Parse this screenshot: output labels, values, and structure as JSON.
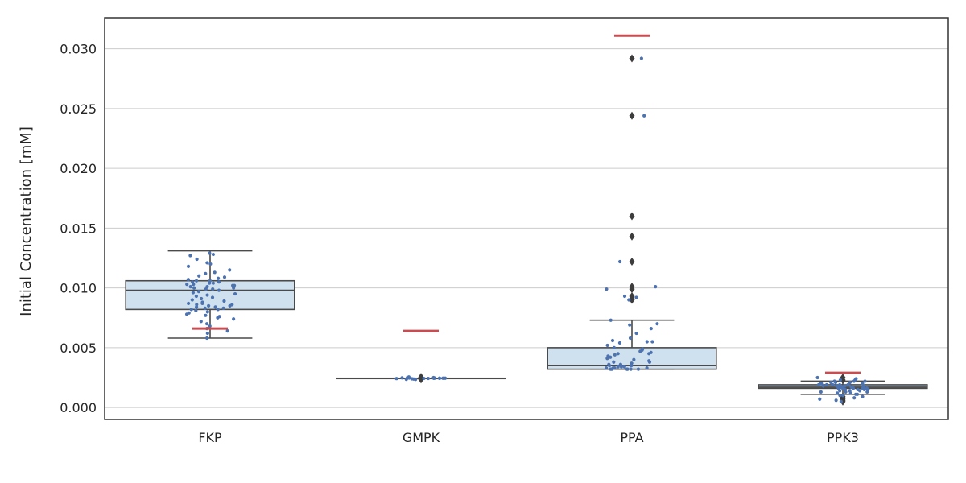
{
  "chart_data": {
    "type": "box",
    "title": "",
    "xlabel": "",
    "ylabel": "Initial Concentration [mM]",
    "ylim": [
      -0.001,
      0.0326
    ],
    "yticks": [
      0.0,
      0.005,
      0.01,
      0.015,
      0.02,
      0.025,
      0.03
    ],
    "ytick_labels": [
      "0.000",
      "0.005",
      "0.010",
      "0.015",
      "0.020",
      "0.025",
      "0.030"
    ],
    "grid": "horizontal",
    "categories": [
      "FKP",
      "GMPK",
      "PPA",
      "PPK3"
    ],
    "colors": {
      "box_fill": "#cfe0ef",
      "box_edge": "#4a4a4a",
      "points": "#4c72b0",
      "reference": "#c44e52",
      "grid": "#cccccc",
      "frame": "#333333"
    },
    "boxes": [
      {
        "category": "FKP",
        "whisker_low": 0.0058,
        "q1": 0.0082,
        "median": 0.0098,
        "q3": 0.0106,
        "whisker_high": 0.0131,
        "outliers": [],
        "reference": 0.0066
      },
      {
        "category": "GMPK",
        "whisker_low": 0.00245,
        "q1": 0.00245,
        "median": 0.00245,
        "q3": 0.00245,
        "whisker_high": 0.00245,
        "outliers": [
          0.00255,
          0.0025,
          0.0024,
          0.00235
        ],
        "reference": 0.0064
      },
      {
        "category": "PPA",
        "whisker_low": 0.0032,
        "q1": 0.0032,
        "median": 0.0035,
        "q3": 0.005,
        "whisker_high": 0.0073,
        "outliers": [
          0.0292,
          0.0244,
          0.016,
          0.0143,
          0.0122,
          0.0101,
          0.0099,
          0.0093,
          0.009
        ],
        "reference": 0.0311
      },
      {
        "category": "PPK3",
        "whisker_low": 0.0011,
        "q1": 0.0016,
        "median": 0.0017,
        "q3": 0.0019,
        "whisker_high": 0.0022,
        "outliers": [
          0.0025,
          0.0023,
          0.0009,
          0.0008,
          0.0007,
          0.0006,
          0.0005
        ],
        "reference": 0.0029
      }
    ],
    "points": [
      {
        "category": "FKP",
        "values": [
          0.0129,
          0.0128,
          0.0127,
          0.0124,
          0.0121,
          0.012,
          0.0118,
          0.0115,
          0.0113,
          0.0112,
          0.011,
          0.0109,
          0.0108,
          0.0107,
          0.0106,
          0.0106,
          0.0105,
          0.0105,
          0.0104,
          0.0104,
          0.0103,
          0.0103,
          0.0102,
          0.0102,
          0.0101,
          0.0101,
          0.01,
          0.01,
          0.0099,
          0.0099,
          0.0098,
          0.0097,
          0.0096,
          0.0095,
          0.0094,
          0.0093,
          0.0092,
          0.0091,
          0.009,
          0.0089,
          0.0088,
          0.0087,
          0.0087,
          0.0086,
          0.0086,
          0.0085,
          0.0085,
          0.0084,
          0.0084,
          0.0083,
          0.0083,
          0.0082,
          0.0082,
          0.0081,
          0.008,
          0.0079,
          0.0078,
          0.0077,
          0.0076,
          0.0075,
          0.0074,
          0.0072,
          0.007,
          0.0068,
          0.0066,
          0.0064,
          0.0062,
          0.0058
        ]
      },
      {
        "category": "GMPK",
        "values": [
          0.00255,
          0.0025,
          0.0025,
          0.00248,
          0.00247,
          0.00246,
          0.00245,
          0.00245,
          0.00245,
          0.00244,
          0.00244,
          0.00243,
          0.00243,
          0.00242,
          0.0024,
          0.00238,
          0.00236,
          0.00235
        ]
      },
      {
        "category": "PPA",
        "values": [
          0.0292,
          0.0244,
          0.0122,
          0.0101,
          0.0099,
          0.0093,
          0.0092,
          0.009,
          0.0073,
          0.007,
          0.0069,
          0.0066,
          0.0062,
          0.0058,
          0.0056,
          0.0055,
          0.0055,
          0.0054,
          0.0052,
          0.005,
          0.0049,
          0.0048,
          0.0047,
          0.0046,
          0.0045,
          0.0045,
          0.0044,
          0.0043,
          0.0042,
          0.0041,
          0.004,
          0.0039,
          0.0038,
          0.0038,
          0.0037,
          0.0036,
          0.0036,
          0.0035,
          0.0035,
          0.0034,
          0.0034,
          0.0034,
          0.0033,
          0.0033,
          0.0033,
          0.0033,
          0.0032,
          0.0032,
          0.0032,
          0.0032,
          0.0032,
          0.0032
        ]
      },
      {
        "category": "PPK3",
        "values": [
          0.0025,
          0.0024,
          0.0023,
          0.0023,
          0.0022,
          0.0022,
          0.0022,
          0.0021,
          0.0021,
          0.0021,
          0.002,
          0.002,
          0.002,
          0.002,
          0.0019,
          0.0019,
          0.0019,
          0.0019,
          0.0019,
          0.0018,
          0.0018,
          0.0018,
          0.0018,
          0.0018,
          0.0018,
          0.0017,
          0.0017,
          0.0017,
          0.0017,
          0.0017,
          0.0017,
          0.0016,
          0.0016,
          0.0016,
          0.0016,
          0.0016,
          0.0015,
          0.0015,
          0.0015,
          0.0015,
          0.0014,
          0.0014,
          0.0014,
          0.0013,
          0.0013,
          0.0013,
          0.0012,
          0.0012,
          0.0011,
          0.0011,
          0.001,
          0.001,
          0.0009,
          0.0008,
          0.0007,
          0.0006,
          0.0005
        ]
      }
    ]
  }
}
